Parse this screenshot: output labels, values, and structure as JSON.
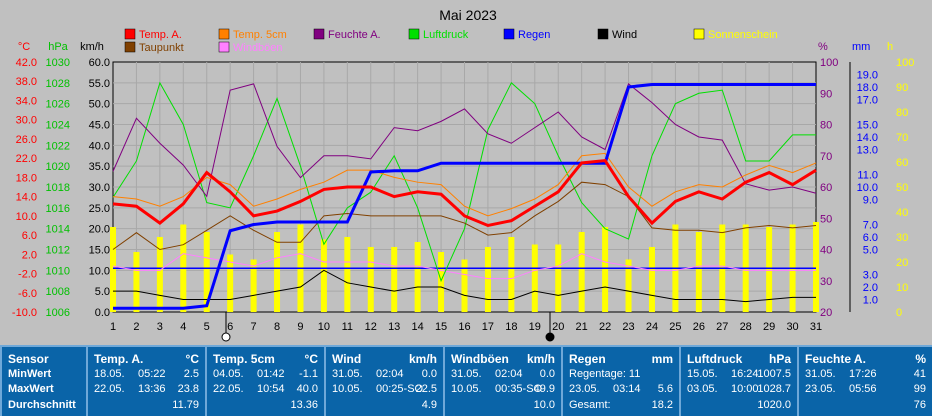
{
  "chart_data": {
    "type": "line",
    "title": "Mai 2023",
    "x": [
      1,
      2,
      3,
      4,
      5,
      6,
      7,
      8,
      9,
      10,
      11,
      12,
      13,
      14,
      15,
      16,
      17,
      18,
      19,
      20,
      21,
      22,
      23,
      24,
      25,
      26,
      27,
      28,
      29,
      30,
      31
    ],
    "axes": {
      "temp": {
        "label": "°C",
        "min": -10,
        "max": 42,
        "ticks": [
          "42.0",
          "38.0",
          "34.0",
          "30.0",
          "26.0",
          "22.0",
          "18.0",
          "14.0",
          "10.0",
          "6.0",
          "2.0",
          "-2.0",
          "-6.0",
          "-10.0"
        ]
      },
      "pressure": {
        "label": "hPa",
        "min": 1006,
        "max": 1030,
        "ticks": [
          "1030",
          "1028",
          "1026",
          "1024",
          "1022",
          "1020",
          "1018",
          "1016",
          "1014",
          "1012",
          "1010",
          "1008",
          "1006"
        ]
      },
      "wind": {
        "label": "km/h",
        "min": 0,
        "max": 60,
        "ticks": [
          "60.0",
          "55.0",
          "50.0",
          "45.0",
          "40.0",
          "35.0",
          "30.0",
          "25.0",
          "20.0",
          "15.0",
          "10.0",
          "5.0",
          "0.0"
        ]
      },
      "humidity": {
        "label": "%",
        "min": 20,
        "max": 100,
        "ticks": [
          "100",
          "90",
          "80",
          "70",
          "60",
          "50",
          "40",
          "30",
          "20"
        ]
      },
      "rain": {
        "label": "mm",
        "min": 0,
        "max": 20,
        "ticks": [
          "19.0",
          "18.0",
          "17.0",
          "15.0",
          "14.0",
          "13.0",
          "11.0",
          "10.0",
          "9.0",
          "7.0",
          "6.0",
          "5.0",
          "3.0",
          "2.0",
          "1.0"
        ]
      },
      "sun": {
        "label": "h",
        "min": 0,
        "max": 100,
        "ticks": [
          "100",
          "90",
          "80",
          "70",
          "60",
          "50",
          "40",
          "30",
          "20",
          "10",
          "0"
        ]
      }
    },
    "legend": [
      {
        "name": "Temp. A.",
        "color": "#ff0000"
      },
      {
        "name": "Temp. 5cm",
        "color": "#ff8000"
      },
      {
        "name": "Feuchte A.",
        "color": "#800080"
      },
      {
        "name": "Luftdruck",
        "color": "#00e000"
      },
      {
        "name": "Regen",
        "color": "#0000ff"
      },
      {
        "name": "Wind",
        "color": "#000000"
      },
      {
        "name": "Sonnenschein",
        "color": "#ffff00"
      },
      {
        "name": "Taupunkt",
        "color": "#804000"
      },
      {
        "name": "Windböen",
        "color": "#ff80ff"
      }
    ],
    "series": {
      "temp_a": [
        12.5,
        12,
        8.5,
        12.5,
        19,
        15,
        10,
        11,
        13,
        15.5,
        16,
        16,
        14,
        15,
        14.5,
        10,
        8,
        9,
        12,
        15,
        21,
        21.5,
        14,
        8.5,
        13,
        15,
        13.5,
        17,
        19,
        16.5,
        19.5
      ],
      "temp_5cm": [
        14,
        13.5,
        12,
        14,
        18,
        16.5,
        12,
        13.5,
        15.5,
        17,
        19.5,
        19.5,
        18,
        17,
        16.5,
        12,
        10,
        11.5,
        13.5,
        16.5,
        22.5,
        23,
        16,
        12,
        15,
        16.5,
        16,
        18.5,
        20.5,
        19,
        21
      ],
      "dewpoint": [
        3,
        6.5,
        3,
        4,
        7,
        10,
        7,
        4.5,
        4.5,
        10,
        10.5,
        10,
        10,
        10,
        10,
        8.5,
        6,
        6.5,
        10,
        13,
        17,
        16.5,
        14,
        7.5,
        7,
        7,
        6.5,
        7.5,
        8,
        7.5,
        8
      ],
      "humidity": [
        65,
        82,
        74,
        67,
        57,
        91,
        93,
        73,
        63,
        70,
        70,
        69,
        79,
        78,
        81,
        85,
        77,
        74,
        79,
        84,
        76,
        72,
        93,
        87,
        80,
        76,
        75,
        61,
        59,
        60,
        58
      ],
      "pressure": [
        1017,
        1020.5,
        1028,
        1024,
        1016.5,
        1016,
        1021,
        1026.5,
        1020,
        1012.5,
        1016,
        1017.5,
        1021,
        1016,
        1009,
        1014,
        1023.5,
        1028,
        1026,
        1021,
        1016.5,
        1014,
        1013,
        1021,
        1026,
        1027,
        1027.3,
        1020.5,
        1020.5,
        1023,
        1023
      ],
      "rain": [
        0.3,
        0.3,
        0.3,
        0.3,
        0.5,
        6.5,
        7,
        7.2,
        7.2,
        7.2,
        7.2,
        11.2,
        11.3,
        11.3,
        11.9,
        11.9,
        11.9,
        11.9,
        11.9,
        11.9,
        11.9,
        11.9,
        18.0,
        18.2,
        18.2,
        18.2,
        18.2,
        18.2,
        18.2,
        18.2,
        18.2
      ],
      "wind": [
        5,
        5,
        4,
        3,
        3,
        3,
        4,
        5,
        6,
        10,
        7,
        6,
        5,
        6,
        6,
        4,
        3,
        3,
        5,
        4,
        5,
        6,
        5,
        4,
        3,
        3,
        3,
        2.5,
        3,
        3.5,
        3.5
      ],
      "wind_gusts": [
        11,
        10,
        10,
        14,
        13,
        12,
        11,
        13,
        14,
        12,
        12,
        12,
        11,
        11,
        10,
        9,
        8,
        8,
        10,
        11,
        14,
        12,
        11,
        10,
        10,
        11,
        11,
        10,
        10,
        10,
        10
      ],
      "sunshine": [
        34,
        24,
        30,
        35,
        32,
        23,
        21,
        32,
        35,
        29,
        30,
        26,
        26,
        28,
        24,
        21,
        26,
        30,
        27,
        27,
        32,
        34,
        21,
        26,
        35,
        32,
        35,
        35,
        34,
        35,
        36
      ],
      "rain_daily_monthly": [
        10.5,
        10.5,
        10.5,
        10.5,
        10.5,
        10.5,
        10.5,
        10.5,
        10.5,
        10.5,
        10.5,
        10.5,
        10.5,
        10.5,
        10.5,
        10.5,
        10.5,
        10.5,
        10.5,
        10.5,
        10.5,
        10.5,
        10.5,
        10.5,
        10.5,
        10.5,
        10.5,
        10.5,
        10.5,
        10.5,
        10.5
      ]
    }
  },
  "summary": {
    "sensor": {
      "title": "Sensor",
      "rows": [
        "MinWert",
        "MaxWert",
        "Durchschnitt"
      ]
    },
    "panels": [
      {
        "title": "Temp. A.",
        "unit": "°C",
        "min": [
          "18.05.",
          "05:22",
          "2.5"
        ],
        "max": [
          "22.05.",
          "13:36",
          "23.8"
        ],
        "avg": "11.79"
      },
      {
        "title": "Temp. 5cm",
        "unit": "°C",
        "min": [
          "04.05.",
          "01:42",
          "-1.1"
        ],
        "max": [
          "22.05.",
          "10:54",
          "40.0"
        ],
        "avg": "13.36"
      },
      {
        "title": "Wind",
        "unit": "km/h",
        "min": [
          "31.05.",
          "02:04",
          "0.0"
        ],
        "max": [
          "10.05.",
          "00:25-SO",
          "22.5"
        ],
        "avg": "4.9"
      },
      {
        "title": "Windböen",
        "unit": "km/h",
        "min": [
          "31.05.",
          "02:04",
          "0.0"
        ],
        "max": [
          "10.05.",
          "00:35-SO",
          "49.9"
        ],
        "avg": "10.0"
      },
      {
        "title": "Regen",
        "unit": "mm",
        "min": [
          "Regentage: 11",
          "",
          ""
        ],
        "max": [
          "23.05.",
          "03:14",
          "5.6"
        ],
        "avg_label": "Gesamt:",
        "avg": "18.2"
      },
      {
        "title": "Luftdruck",
        "unit": "hPa",
        "min": [
          "15.05.",
          "16:24",
          "1007.5"
        ],
        "max": [
          "03.05.",
          "10:00",
          "1028.7"
        ],
        "avg": "1020.0"
      },
      {
        "title": "Feuchte A.",
        "unit": "%",
        "min": [
          "31.05.",
          "17:26",
          "41"
        ],
        "max": [
          "23.05.",
          "05:56",
          "99"
        ],
        "avg": "76"
      }
    ]
  }
}
